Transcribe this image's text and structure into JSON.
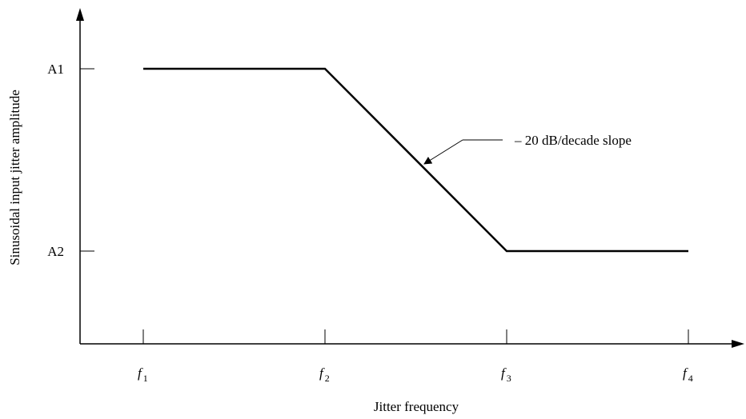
{
  "chart_data": {
    "type": "line",
    "title": "",
    "xlabel": "Jitter frequency",
    "ylabel": "Sinusoidal input jitter amplitude",
    "x_scale": "log",
    "x_ticks": [
      {
        "base": "f",
        "sub": "1"
      },
      {
        "base": "f",
        "sub": "2"
      },
      {
        "base": "f",
        "sub": "3"
      },
      {
        "base": "f",
        "sub": "4"
      }
    ],
    "y_ticks": [
      "A1",
      "A2"
    ],
    "series": [
      {
        "points": [
          {
            "x": "f1",
            "y": "A1"
          },
          {
            "x": "f2",
            "y": "A1"
          },
          {
            "x": "f3",
            "y": "A2"
          },
          {
            "x": "f4",
            "y": "A2"
          }
        ]
      }
    ],
    "annotations": [
      {
        "text": "– 20 dB/decade slope",
        "target": "segment f2–f3"
      }
    ],
    "grid": false,
    "legend": "none",
    "line_color": "#000000"
  }
}
